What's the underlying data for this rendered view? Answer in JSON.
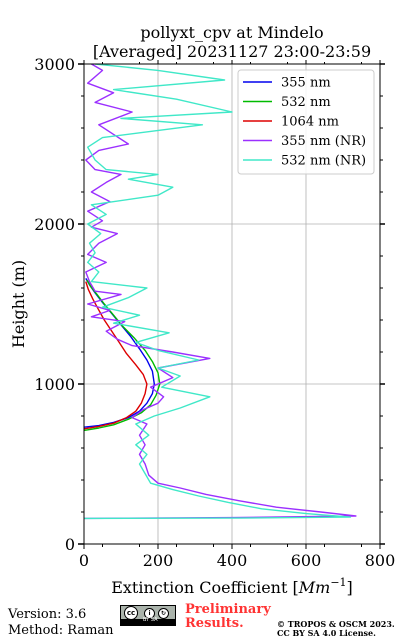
{
  "chart_data": {
    "type": "line",
    "title": "pollyxt_cpv at Mindelo",
    "subtitle": "[Averaged] 20231127 23:00-23:59",
    "xlabel_text": "Extinction Coefficient [",
    "xlabel_unit": "Mm",
    "xlabel_exp": "−1",
    "xlabel_close": "]",
    "ylabel": "Height (m)",
    "xlim": [
      0,
      800
    ],
    "ylim": [
      0,
      3000
    ],
    "xticks": [
      "0",
      "200",
      "400",
      "600",
      "800"
    ],
    "yticks": [
      "0",
      "1000",
      "2000",
      "3000"
    ],
    "grid": true,
    "legend_position": "top-right",
    "series": [
      {
        "name": "355 nm",
        "color": "#0000ee",
        "points": [
          [
            0,
            730
          ],
          [
            40,
            740
          ],
          [
            80,
            760
          ],
          [
            120,
            790
          ],
          [
            150,
            830
          ],
          [
            170,
            880
          ],
          [
            185,
            940
          ],
          [
            190,
            1000
          ],
          [
            185,
            1080
          ],
          [
            170,
            1150
          ],
          [
            150,
            1220
          ],
          [
            125,
            1300
          ],
          [
            100,
            1370
          ],
          [
            75,
            1440
          ],
          [
            50,
            1510
          ],
          [
            30,
            1570
          ],
          [
            15,
            1620
          ],
          [
            5,
            1660
          ]
        ]
      },
      {
        "name": "532 nm",
        "color": "#00bb00",
        "points": [
          [
            0,
            710
          ],
          [
            40,
            725
          ],
          [
            80,
            745
          ],
          [
            120,
            780
          ],
          [
            155,
            820
          ],
          [
            180,
            870
          ],
          [
            195,
            930
          ],
          [
            205,
            1000
          ],
          [
            200,
            1070
          ],
          [
            185,
            1140
          ],
          [
            165,
            1210
          ],
          [
            135,
            1290
          ],
          [
            105,
            1360
          ],
          [
            80,
            1430
          ],
          [
            55,
            1500
          ],
          [
            35,
            1560
          ],
          [
            18,
            1610
          ],
          [
            8,
            1650
          ]
        ]
      },
      {
        "name": "1064 nm",
        "color": "#dd0000",
        "points": [
          [
            0,
            720
          ],
          [
            40,
            735
          ],
          [
            80,
            755
          ],
          [
            115,
            790
          ],
          [
            140,
            830
          ],
          [
            155,
            880
          ],
          [
            165,
            940
          ],
          [
            170,
            1000
          ],
          [
            160,
            1060
          ],
          [
            140,
            1120
          ],
          [
            115,
            1190
          ],
          [
            95,
            1260
          ],
          [
            75,
            1330
          ],
          [
            55,
            1400
          ],
          [
            38,
            1470
          ],
          [
            24,
            1530
          ],
          [
            12,
            1590
          ],
          [
            5,
            1640
          ]
        ]
      },
      {
        "name": "355 nm (NR)",
        "color": "#9b30ff",
        "points": [
          [
            0,
            160
          ],
          [
            400,
            165
          ],
          [
            735,
            175
          ],
          [
            640,
            200
          ],
          [
            520,
            230
          ],
          [
            420,
            270
          ],
          [
            330,
            310
          ],
          [
            260,
            350
          ],
          [
            200,
            380
          ],
          [
            175,
            430
          ],
          [
            165,
            500
          ],
          [
            150,
            560
          ],
          [
            165,
            620
          ],
          [
            150,
            680
          ],
          [
            170,
            750
          ],
          [
            130,
            790
          ],
          [
            160,
            840
          ],
          [
            200,
            880
          ],
          [
            215,
            920
          ],
          [
            180,
            980
          ],
          [
            240,
            1040
          ],
          [
            200,
            1100
          ],
          [
            340,
            1160
          ],
          [
            240,
            1200
          ],
          [
            130,
            1240
          ],
          [
            90,
            1280
          ],
          [
            60,
            1330
          ],
          [
            110,
            1390
          ],
          [
            20,
            1420
          ],
          [
            70,
            1460
          ],
          [
            10,
            1500
          ],
          [
            100,
            1560
          ],
          [
            30,
            1580
          ],
          [
            15,
            1640
          ],
          [
            5,
            1700
          ],
          [
            60,
            1760
          ],
          [
            10,
            1810
          ],
          [
            40,
            1880
          ],
          [
            90,
            1940
          ],
          [
            20,
            1980
          ],
          [
            50,
            2020
          ],
          [
            10,
            2080
          ],
          [
            70,
            2140
          ],
          [
            20,
            2200
          ],
          [
            60,
            2260
          ],
          [
            100,
            2310
          ],
          [
            30,
            2340
          ],
          [
            5,
            2400
          ],
          [
            40,
            2460
          ],
          [
            120,
            2500
          ],
          [
            80,
            2560
          ],
          [
            40,
            2620
          ],
          [
            130,
            2700
          ],
          [
            30,
            2760
          ],
          [
            80,
            2820
          ],
          [
            10,
            2880
          ],
          [
            50,
            2960
          ],
          [
            20,
            3000
          ]
        ]
      },
      {
        "name": "532 nm (NR)",
        "color": "#40e8c8",
        "points": [
          [
            0,
            160
          ],
          [
            420,
            162
          ],
          [
            720,
            168
          ],
          [
            600,
            190
          ],
          [
            480,
            220
          ],
          [
            390,
            260
          ],
          [
            310,
            300
          ],
          [
            240,
            340
          ],
          [
            180,
            380
          ],
          [
            165,
            440
          ],
          [
            150,
            500
          ],
          [
            170,
            560
          ],
          [
            140,
            620
          ],
          [
            175,
            680
          ],
          [
            140,
            750
          ],
          [
            190,
            800
          ],
          [
            260,
            850
          ],
          [
            340,
            920
          ],
          [
            210,
            980
          ],
          [
            260,
            1050
          ],
          [
            200,
            1100
          ],
          [
            310,
            1150
          ],
          [
            200,
            1210
          ],
          [
            140,
            1260
          ],
          [
            230,
            1320
          ],
          [
            80,
            1380
          ],
          [
            150,
            1430
          ],
          [
            50,
            1480
          ],
          [
            120,
            1540
          ],
          [
            170,
            1600
          ],
          [
            20,
            1640
          ],
          [
            40,
            1700
          ],
          [
            10,
            1760
          ],
          [
            30,
            1820
          ],
          [
            15,
            1880
          ],
          [
            45,
            1940
          ],
          [
            10,
            2000
          ],
          [
            60,
            2060
          ],
          [
            20,
            2120
          ],
          [
            200,
            2180
          ],
          [
            240,
            2230
          ],
          [
            120,
            2280
          ],
          [
            200,
            2310
          ],
          [
            60,
            2340
          ],
          [
            30,
            2400
          ],
          [
            10,
            2480
          ],
          [
            50,
            2540
          ],
          [
            320,
            2620
          ],
          [
            100,
            2660
          ],
          [
            400,
            2700
          ],
          [
            250,
            2780
          ],
          [
            80,
            2840
          ],
          [
            380,
            2900
          ],
          [
            200,
            2960
          ],
          [
            30,
            3000
          ]
        ]
      }
    ]
  },
  "footer": {
    "version": "Version: 3.6",
    "method": "Method: Raman",
    "preliminary_line1": "Preliminary",
    "preliminary_line2": "Results.",
    "copyright_line1": "© TROPOS & OSCM 2023.",
    "copyright_line2": "CC BY SA 4.0 License.",
    "license_badge_text": "BY SA"
  }
}
